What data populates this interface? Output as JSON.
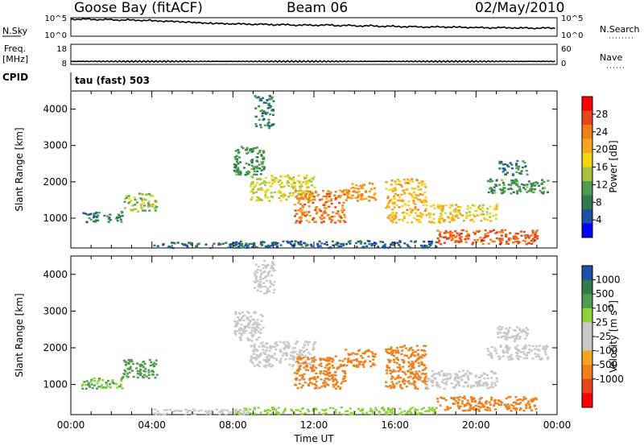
{
  "header": {
    "station": "Goose Bay (fitACF)",
    "beam": "Beam 06",
    "date": "02/May/2010"
  },
  "noise_panel": {
    "left_label": "N.Sky",
    "right_label": "N.Search",
    "tick_top": "10^5",
    "tick_bottom": "10^0",
    "series_sky_log10": [
      4.6,
      4.5,
      4.4,
      4.3,
      4.1,
      3.9,
      3.6,
      3.4,
      3.3,
      3.2,
      3.1,
      3.0,
      3.0,
      2.9,
      2.8,
      2.7,
      2.6,
      2.5,
      2.5,
      2.4,
      2.3,
      2.3,
      2.2,
      2.2
    ]
  },
  "freq_panel": {
    "left_label_1": "Freq.",
    "left_label_2": "[MHz]",
    "left_ticks": [
      "18",
      "8"
    ],
    "right_label": "Nave",
    "right_ticks": [
      "60",
      "0"
    ],
    "freq_value_mhz": 9.5,
    "nave_value": 13
  },
  "cpid": {
    "label": "CPID",
    "value": "tau (fast) 503"
  },
  "colors": {
    "power_scale": [
      "#0000ff",
      "#1f4fa8",
      "#2e7d4f",
      "#4f9c4f",
      "#a9c23c",
      "#f3d516",
      "#f7a51d",
      "#f07f1a",
      "#e8451a",
      "#ff0000"
    ],
    "velocity_scale": [
      "#ff0000",
      "#e8451a",
      "#f07f1a",
      "#f7a51d",
      "#c8c8c8",
      "#c8c8c8",
      "#8fd13c",
      "#4f9c4f",
      "#2e7d4f",
      "#1f4fa8"
    ]
  },
  "chart_data": [
    {
      "type": "heatmap",
      "panel": "power",
      "xlabel": "",
      "ylabel": "Slant Range [km]",
      "ylim": [
        180,
        4500
      ],
      "x_tick_labels": [
        "00:00",
        "04:00",
        "08:00",
        "12:00",
        "16:00",
        "20:00",
        "00:00"
      ],
      "y_tick_labels": [
        "1000",
        "2000",
        "3000",
        "4000"
      ],
      "y_ticks": [
        1000,
        2000,
        3000,
        4000
      ],
      "colorbar": {
        "label": "Power [dB]",
        "tick_labels": [
          "4",
          "8",
          "12",
          "16",
          "20",
          "24",
          "28"
        ],
        "range": [
          0,
          32
        ]
      },
      "regions": [
        {
          "x": [
            0.5,
            2.5
          ],
          "y": [
            900,
            1200
          ],
          "value": 8
        },
        {
          "x": [
            2.5,
            4.2
          ],
          "y": [
            1200,
            1700
          ],
          "value": 14
        },
        {
          "x": [
            8.0,
            9.5
          ],
          "y": [
            2200,
            3000
          ],
          "value": 10
        },
        {
          "x": [
            9.0,
            10.0
          ],
          "y": [
            3500,
            4400
          ],
          "value": 8
        },
        {
          "x": [
            8.8,
            12.0
          ],
          "y": [
            1500,
            2200
          ],
          "value": 16
        },
        {
          "x": [
            11.0,
            13.5
          ],
          "y": [
            900,
            1800
          ],
          "value": 24
        },
        {
          "x": [
            13.5,
            15.0
          ],
          "y": [
            1500,
            2000
          ],
          "value": 22
        },
        {
          "x": [
            15.5,
            17.5
          ],
          "y": [
            900,
            2100
          ],
          "value": 20
        },
        {
          "x": [
            17.5,
            21.0
          ],
          "y": [
            900,
            1400
          ],
          "value": 18
        },
        {
          "x": [
            18.0,
            23.0
          ],
          "y": [
            300,
            700
          ],
          "value": 26
        },
        {
          "x": [
            20.5,
            23.5
          ],
          "y": [
            1700,
            2100
          ],
          "value": 10
        },
        {
          "x": [
            21.0,
            22.5
          ],
          "y": [
            2200,
            2600
          ],
          "value": 8
        },
        {
          "x": [
            8.0,
            18.0
          ],
          "y": [
            200,
            400
          ],
          "value": 6
        },
        {
          "x": [
            4.0,
            9.0
          ],
          "y": [
            200,
            350
          ],
          "value": 6
        }
      ]
    },
    {
      "type": "heatmap",
      "panel": "velocity",
      "xlabel": "Time UT",
      "ylabel": "Slant Range [km]",
      "ylim": [
        180,
        4500
      ],
      "x_tick_labels": [
        "00:00",
        "04:00",
        "08:00",
        "12:00",
        "16:00",
        "20:00",
        "00:00"
      ],
      "y_tick_labels": [
        "1000",
        "2000",
        "3000",
        "4000"
      ],
      "y_ticks": [
        1000,
        2000,
        3000,
        4000
      ],
      "colorbar": {
        "label_parts": [
          "Velocity [m s",
          "-1",
          "]"
        ],
        "tick_labels": [
          "1000",
          "500",
          "100",
          "25",
          "-25",
          "-100",
          "-500",
          "-1000"
        ]
      },
      "regions": [
        {
          "x": [
            0.5,
            2.5
          ],
          "y": [
            900,
            1200
          ],
          "value": 100
        },
        {
          "x": [
            2.5,
            4.2
          ],
          "y": [
            1200,
            1700
          ],
          "value": 300
        },
        {
          "x": [
            8.0,
            9.5
          ],
          "y": [
            2200,
            3000
          ],
          "value": 0
        },
        {
          "x": [
            9.0,
            10.0
          ],
          "y": [
            3500,
            4400
          ],
          "value": 0
        },
        {
          "x": [
            8.8,
            12.0
          ],
          "y": [
            1500,
            2200
          ],
          "value": 0
        },
        {
          "x": [
            11.0,
            13.5
          ],
          "y": [
            900,
            1800
          ],
          "value": -300
        },
        {
          "x": [
            13.5,
            15.0
          ],
          "y": [
            1500,
            2000
          ],
          "value": -150
        },
        {
          "x": [
            15.5,
            17.5
          ],
          "y": [
            900,
            2100
          ],
          "value": -150
        },
        {
          "x": [
            17.5,
            21.0
          ],
          "y": [
            900,
            1400
          ],
          "value": 0
        },
        {
          "x": [
            18.0,
            23.0
          ],
          "y": [
            300,
            700
          ],
          "value": -300
        },
        {
          "x": [
            20.5,
            23.5
          ],
          "y": [
            1700,
            2100
          ],
          "value": 0
        },
        {
          "x": [
            21.0,
            22.5
          ],
          "y": [
            2200,
            2600
          ],
          "value": 0
        },
        {
          "x": [
            8.0,
            18.0
          ],
          "y": [
            200,
            400
          ],
          "value": 50
        },
        {
          "x": [
            4.0,
            9.0
          ],
          "y": [
            200,
            350
          ],
          "value": 0
        }
      ]
    }
  ]
}
